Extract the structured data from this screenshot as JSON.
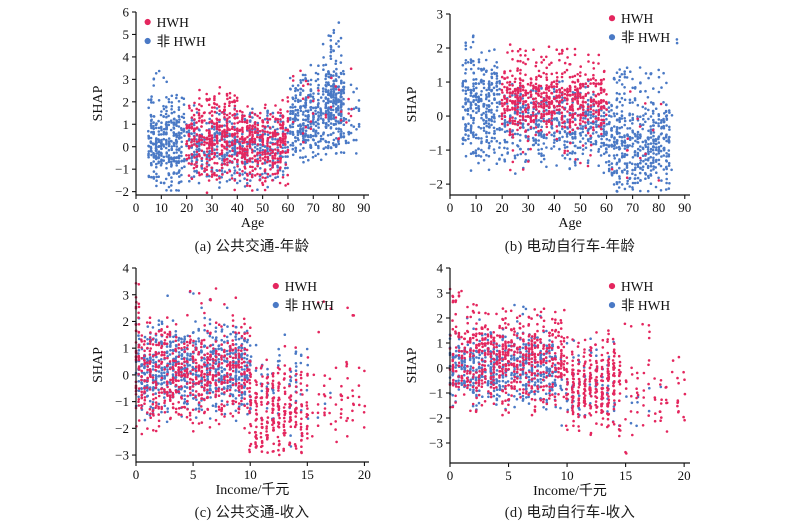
{
  "colors": {
    "hwh": "#E4265E",
    "non_hwh": "#4A79C5",
    "axis": "#111111"
  },
  "legend_labels": {
    "hwh": "HWH",
    "non_hwh": "非 HWH"
  },
  "chart_data": [
    {
      "id": "a",
      "type": "scatter",
      "title": "(a) 公共交通-年龄",
      "xlabel": "Age",
      "ylabel": "SHAP",
      "xlim": [
        0,
        92
      ],
      "ylim": [
        -2.15,
        6
      ],
      "xticks": [
        0,
        10,
        20,
        30,
        40,
        50,
        60,
        70,
        80,
        90
      ],
      "yticks": [
        -2,
        -1,
        0,
        1,
        2,
        3,
        4,
        5,
        6
      ],
      "grid": false,
      "legend": {
        "position": "upper-left",
        "fx": 0.05,
        "fy": 0.022,
        "entries": [
          {
            "label": "HWH",
            "color": "#E4265E"
          },
          {
            "label": "非 HWH",
            "color": "#4A79C5"
          }
        ]
      },
      "series": [
        {
          "name": "非 HWH",
          "color": "#4A79C5",
          "x_snap": 1,
          "clusters": [
            {
              "x": [
                5,
                19
              ],
              "n": 340,
              "y_mean": 0.2,
              "y_sd": 1.0,
              "y_clip": [
                -1.95,
                2.3
              ]
            },
            {
              "x": [
                6,
                13
              ],
              "n": 7,
              "y_mean": 3.0,
              "y_sd": 0.5,
              "y_clip": [
                2.4,
                3.85
              ]
            },
            {
              "x": [
                20,
                60
              ],
              "n": 460,
              "y_mean": -0.05,
              "y_sd": 0.8,
              "y_clip": [
                -2.0,
                1.9
              ]
            },
            {
              "x": [
                61,
                73
              ],
              "n": 270,
              "y_mean": 1.2,
              "y_sd": 1.0,
              "y_clip": [
                -0.85,
                4.2
              ]
            },
            {
              "x": [
                74,
                82
              ],
              "n": 280,
              "y_mean": 1.8,
              "y_sd": 1.1,
              "y_clip": [
                -0.35,
                5.0
              ]
            },
            {
              "x": [
                76,
                81
              ],
              "n": 12,
              "y_mean": 5.0,
              "y_sd": 0.5,
              "y_clip": [
                4.2,
                5.65
              ]
            },
            {
              "x": [
                83,
                88
              ],
              "n": 28,
              "y_mean": 1.2,
              "y_sd": 0.9,
              "y_clip": [
                -0.3,
                2.85
              ]
            }
          ]
        },
        {
          "name": "HWH",
          "color": "#E4265E",
          "x_snap": 1,
          "clusters": [
            {
              "x": [
                20,
                60
              ],
              "n": 640,
              "y_mean": 0.15,
              "y_sd": 0.85,
              "y_clip": [
                -2.05,
                2.3
              ]
            },
            {
              "x": [
                24,
                40
              ],
              "n": 40,
              "y_mean": 1.9,
              "y_sd": 0.45,
              "y_clip": [
                1.5,
                2.65
              ]
            },
            {
              "x": [
                60,
                85
              ],
              "n": 35,
              "y_mean": 1.8,
              "y_sd": 0.9,
              "y_clip": [
                0.2,
                3.95
              ]
            }
          ]
        }
      ]
    },
    {
      "id": "b",
      "type": "scatter",
      "title": "(b) 电动自行车-年龄",
      "xlabel": "Age",
      "ylabel": "SHAP",
      "xlim": [
        0,
        92
      ],
      "ylim": [
        -2.32,
        3
      ],
      "xticks": [
        0,
        10,
        20,
        30,
        40,
        50,
        60,
        70,
        80,
        90
      ],
      "yticks": [
        -2,
        -1,
        0,
        1,
        2,
        3
      ],
      "grid": false,
      "legend": {
        "position": "upper-right",
        "fx": 0.675,
        "fy": -0.01,
        "entries": [
          {
            "label": "HWH",
            "color": "#E4265E"
          },
          {
            "label": "非 HWH",
            "color": "#4A79C5"
          }
        ]
      },
      "series": [
        {
          "name": "非 HWH",
          "color": "#4A79C5",
          "x_snap": 1,
          "clusters": [
            {
              "x": [
                5,
                19
              ],
              "n": 310,
              "y_mean": 0.35,
              "y_sd": 0.85,
              "y_clip": [
                -1.65,
                2.05
              ]
            },
            {
              "x": [
                6,
                9
              ],
              "n": 5,
              "y_mean": 2.2,
              "y_sd": 0.2,
              "y_clip": [
                2.05,
                2.45
              ]
            },
            {
              "x": [
                20,
                60
              ],
              "n": 470,
              "y_mean": -0.2,
              "y_sd": 0.6,
              "y_clip": [
                -1.7,
                1.05
              ]
            },
            {
              "x": [
                60,
                85
              ],
              "n": 440,
              "y_mean": -0.9,
              "y_sd": 0.75,
              "y_clip": [
                -2.3,
                0.65
              ]
            },
            {
              "x": [
                62,
                84
              ],
              "n": 42,
              "y_mean": 0.95,
              "y_sd": 0.35,
              "y_clip": [
                0.65,
                1.45
              ]
            },
            {
              "x": [
                86,
                88
              ],
              "n": 2,
              "y_mean": 2.25,
              "y_sd": 0.15,
              "y_clip": [
                2.0,
                2.4
              ]
            }
          ]
        },
        {
          "name": "HWH",
          "color": "#E4265E",
          "x_snap": 1,
          "clusters": [
            {
              "x": [
                20,
                60
              ],
              "n": 600,
              "y_mean": 0.5,
              "y_sd": 0.5,
              "y_clip": [
                -0.95,
                1.35
              ]
            },
            {
              "x": [
                22,
                57
              ],
              "n": 48,
              "y_mean": 1.6,
              "y_sd": 0.3,
              "y_clip": [
                1.35,
                2.1
              ]
            },
            {
              "x": [
                20,
                58
              ],
              "n": 14,
              "y_mean": -1.15,
              "y_sd": 0.25,
              "y_clip": [
                -1.65,
                -0.85
              ]
            },
            {
              "x": [
                60,
                82
              ],
              "n": 14,
              "y_mean": -0.8,
              "y_sd": 0.8,
              "y_clip": [
                -2.2,
                0.9
              ]
            }
          ]
        }
      ]
    },
    {
      "id": "c",
      "type": "scatter",
      "title": "(c) 公共交通-收入",
      "xlabel": "Income/千元",
      "ylabel": "SHAP",
      "xlim": [
        0,
        20.4
      ],
      "ylim": [
        -3.26,
        4
      ],
      "xticks": [
        0,
        5,
        10,
        15,
        20
      ],
      "yticks": [
        -3,
        -2,
        -1,
        0,
        1,
        2,
        3,
        4
      ],
      "grid": false,
      "legend": {
        "position": "upper-right",
        "fx": 0.6,
        "fy": 0.062,
        "entries": [
          {
            "label": "HWH",
            "color": "#E4265E"
          },
          {
            "label": "非 HWH",
            "color": "#4A79C5"
          }
        ]
      },
      "series": [
        {
          "name": "非 HWH",
          "color": "#4A79C5",
          "clusters": [
            {
              "x": [
                0,
                10
              ],
              "n": 700,
              "y_mean": 0.3,
              "y_sd": 0.8,
              "y_clip": [
                -1.9,
                2.2
              ],
              "x_snap": 0.25
            },
            {
              "x": [
                2.5,
                9
              ],
              "n": 6,
              "y_mean": 2.9,
              "y_sd": 0.3,
              "y_clip": [
                2.45,
                3.1
              ],
              "x_snap": 0.25
            },
            {
              "x": [
                10,
                15
              ],
              "n": 65,
              "y_mean": -0.6,
              "y_sd": 1.0,
              "y_clip": [
                -2.7,
                1.55
              ],
              "x_snap": 0.5
            },
            {
              "x": [
                15,
                17
              ],
              "n": 4,
              "y_mean": -1.0,
              "y_sd": 0.5,
              "y_clip": [
                -1.8,
                -0.3
              ],
              "x_snap": 0.5
            }
          ]
        },
        {
          "name": "HWH",
          "color": "#E4265E",
          "clusters": [
            {
              "x": [
                0,
                10
              ],
              "n": 600,
              "y_mean": 0.1,
              "y_sd": 1.0,
              "y_clip": [
                -2.3,
                2.55
              ],
              "x_snap": 0.25
            },
            {
              "x": [
                0,
                0.3
              ],
              "n": 30,
              "y_mean": 1.4,
              "y_sd": 1.3,
              "y_clip": [
                -2.8,
                3.75
              ],
              "x_snap": 0.25
            },
            {
              "x": [
                3,
                9
              ],
              "n": 8,
              "y_mean": 2.9,
              "y_sd": 0.3,
              "y_clip": [
                2.55,
                3.25
              ],
              "x_snap": 0.25
            },
            {
              "x": [
                10,
                15
              ],
              "n": 280,
              "y_mean": -1.4,
              "y_sd": 0.95,
              "y_clip": [
                -3.05,
                1.3
              ],
              "x_snap": 0.5
            },
            {
              "x": [
                15,
                20
              ],
              "n": 55,
              "y_mean": -1.2,
              "y_sd": 0.9,
              "y_clip": [
                -2.6,
                0.7
              ],
              "x_snap": 0.5
            },
            {
              "x": [
                15.5,
                19.5
              ],
              "n": 8,
              "y_mean": 2.2,
              "y_sd": 0.4,
              "y_clip": [
                1.6,
                2.75
              ],
              "x_snap": 0.5
            }
          ]
        }
      ]
    },
    {
      "id": "d",
      "type": "scatter",
      "title": "(d) 电动自行车-收入",
      "xlabel": "Income/千元",
      "ylabel": "SHAP",
      "xlim": [
        0,
        20.5
      ],
      "ylim": [
        -3.8,
        4
      ],
      "xticks": [
        0,
        5,
        10,
        15,
        20
      ],
      "yticks": [
        -3,
        -2,
        -1,
        0,
        1,
        2,
        3,
        4
      ],
      "grid": false,
      "legend": {
        "position": "upper-right",
        "fx": 0.675,
        "fy": 0.062,
        "entries": [
          {
            "label": "HWH",
            "color": "#E4265E"
          },
          {
            "label": "非 HWH",
            "color": "#4A79C5"
          }
        ]
      },
      "series": [
        {
          "name": "非 HWH",
          "color": "#4A79C5",
          "clusters": [
            {
              "x": [
                0,
                9
              ],
              "n": 520,
              "y_mean": -0.05,
              "y_sd": 0.68,
              "y_clip": [
                -1.85,
                1.7
              ],
              "x_snap": 0.25
            },
            {
              "x": [
                1.5,
                8.5
              ],
              "n": 8,
              "y_mean": 2.2,
              "y_sd": 0.3,
              "y_clip": [
                1.75,
                2.6
              ],
              "x_snap": 0.25
            },
            {
              "x": [
                9,
                14
              ],
              "n": 85,
              "y_mean": -0.6,
              "y_sd": 0.85,
              "y_clip": [
                -2.3,
                1.75
              ],
              "x_snap": 0.5
            },
            {
              "x": [
                14,
                19
              ],
              "n": 10,
              "y_mean": -1.6,
              "y_sd": 0.6,
              "y_clip": [
                -2.45,
                -0.55
              ],
              "x_snap": 0.5
            }
          ]
        },
        {
          "name": "HWH",
          "color": "#E4265E",
          "clusters": [
            {
              "x": [
                0,
                10
              ],
              "n": 620,
              "y_mean": 0.3,
              "y_sd": 0.95,
              "y_clip": [
                -2.1,
                2.55
              ],
              "x_snap": 0.25
            },
            {
              "x": [
                0,
                1
              ],
              "n": 12,
              "y_mean": 2.8,
              "y_sd": 0.3,
              "y_clip": [
                2.55,
                3.25
              ],
              "x_snap": 0.25
            },
            {
              "x": [
                10,
                14.5
              ],
              "n": 300,
              "y_mean": -0.7,
              "y_sd": 0.9,
              "y_clip": [
                -2.75,
                1.8
              ],
              "x_snap": 0.5
            },
            {
              "x": [
                14.5,
                20
              ],
              "n": 65,
              "y_mean": -1.3,
              "y_sd": 0.8,
              "y_clip": [
                -2.75,
                0.5
              ],
              "x_snap": 0.5
            },
            {
              "x": [
                14,
                17.5
              ],
              "n": 6,
              "y_mean": 1.5,
              "y_sd": 0.25,
              "y_clip": [
                1.2,
                1.9
              ],
              "x_snap": 0.5
            },
            {
              "x": [
                15,
                15.1
              ],
              "n": 2,
              "y_mean": -3.4,
              "y_sd": 0.05,
              "y_clip": [
                -3.5,
                -3.3
              ],
              "x_snap": 0.5
            }
          ]
        }
      ]
    }
  ]
}
